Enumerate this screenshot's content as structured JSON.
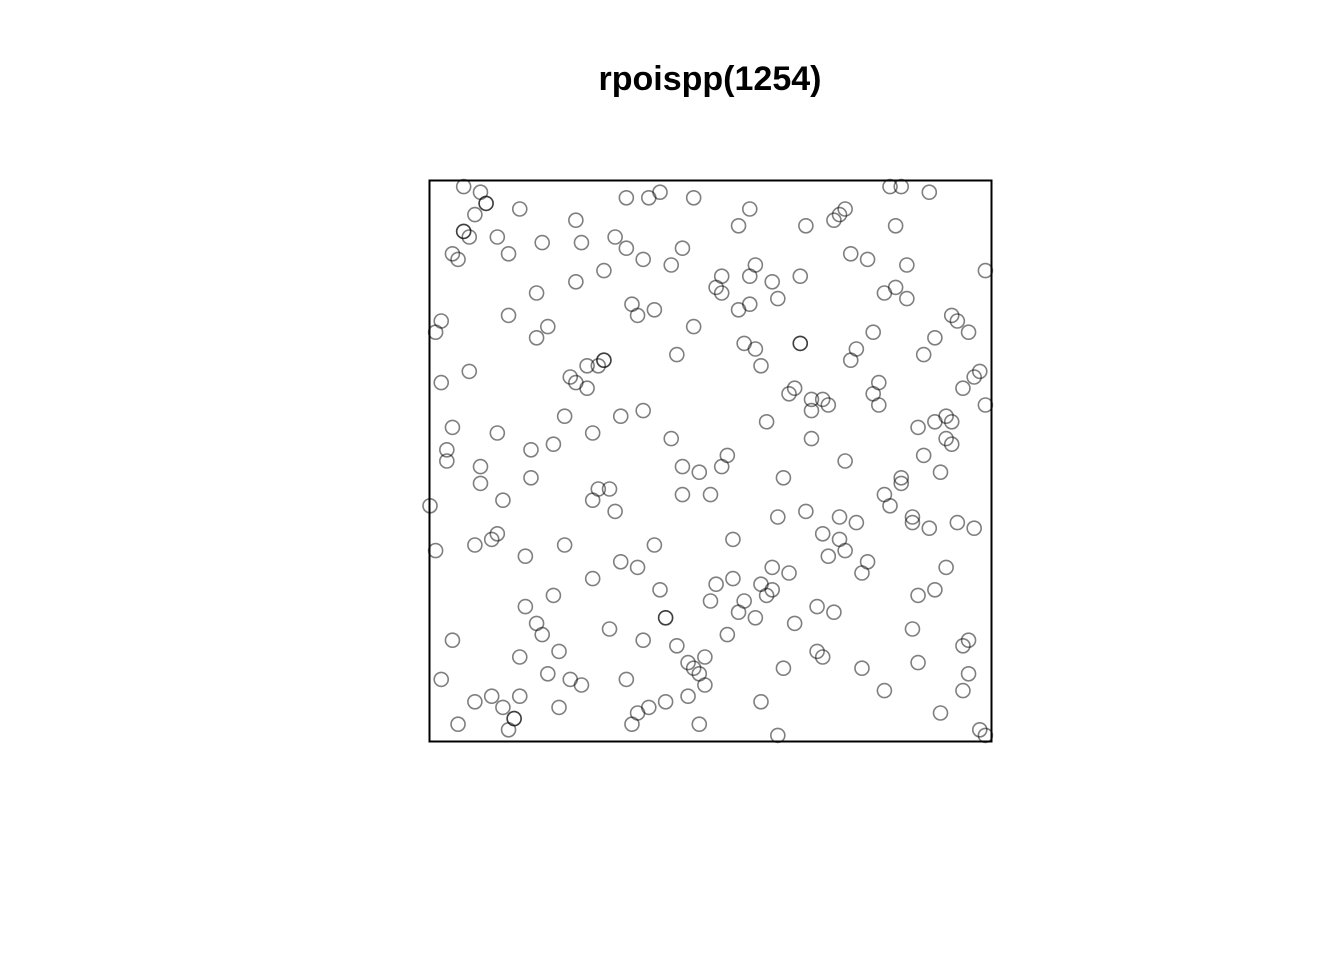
{
  "chart_data": {
    "type": "scatter",
    "title": "rpoispp(1254)",
    "color": "rgba(0,0,0,0.5)",
    "xlim": [
      0,
      1
    ],
    "ylim": [
      0,
      1
    ],
    "x": [
      0.03,
      0.87,
      0.45,
      0.12,
      0.66,
      0.91,
      0.28,
      0.54,
      0.73,
      0.09,
      0.38,
      0.81,
      0.17,
      0.59,
      0.95,
      0.24,
      0.47,
      0.69,
      0.02,
      0.33,
      0.78,
      0.14,
      0.52,
      0.88,
      0.41,
      0.06,
      0.63,
      0.29,
      0.97,
      0.36,
      0.71,
      0.19,
      0.84,
      0.5,
      0.08,
      0.57,
      0.92,
      0.25,
      0.44,
      0.67,
      0.11,
      0.79,
      0.35,
      0.6,
      0.99,
      0.22,
      0.48,
      0.74,
      0.05,
      0.31,
      0.86,
      0.16,
      0.55,
      0.93,
      0.27,
      0.42,
      0.7,
      0.01,
      0.39,
      0.83,
      0.2,
      0.64,
      0.89,
      0.13,
      0.46,
      0.76,
      0.34,
      0.58,
      0.04,
      0.96,
      0.26,
      0.51,
      0.8,
      0.18,
      0.62,
      0.37,
      0.94,
      0.07,
      0.72,
      0.43,
      0.85,
      0.3,
      0.56,
      0.1,
      0.68,
      0.23,
      0.9,
      0.4,
      0.75,
      0.15,
      0.53,
      0.98,
      0.32,
      0.61,
      0.0,
      0.82,
      0.49,
      0.21,
      0.77,
      0.65,
      0.37,
      0.06,
      0.92,
      0.58,
      0.14,
      0.73,
      0.47,
      0.28,
      0.85,
      0.61,
      0.03,
      0.39,
      0.96,
      0.19,
      0.54,
      0.8,
      0.11,
      0.66,
      0.32,
      0.9,
      0.44,
      0.71,
      0.08,
      0.25,
      0.87,
      0.52,
      0.17,
      0.63,
      0.98,
      0.35,
      0.76,
      0.02,
      0.49,
      0.83,
      0.22,
      0.59,
      0.94,
      0.13,
      0.68,
      0.41,
      0.29,
      0.95,
      0.56,
      0.05,
      0.74,
      0.38,
      0.81,
      0.16,
      0.6,
      0.91,
      0.26,
      0.48,
      0.07,
      0.7,
      0.33,
      0.86,
      0.12,
      0.57,
      0.99,
      0.45,
      0.64,
      0.2,
      0.79,
      0.42,
      0.01,
      0.53,
      0.88,
      0.31,
      0.67,
      0.1,
      0.46,
      0.93,
      0.24,
      0.75,
      0.55,
      0.04,
      0.84,
      0.36,
      0.62,
      0.18,
      0.97,
      0.5,
      0.27,
      0.72,
      0.09,
      0.4,
      0.89,
      0.15,
      0.58,
      0.34,
      0.78,
      0.06,
      0.65,
      0.43,
      0.92,
      0.21,
      0.51,
      0.82,
      0.3,
      0.69,
      0.12,
      0.86,
      0.47,
      0.61,
      0.23,
      0.95,
      0.38,
      0.74,
      0.04,
      0.57,
      0.81,
      0.16,
      0.66,
      0.29,
      0.9,
      0.52,
      0.08,
      0.77,
      0.35,
      0.99,
      0.42,
      0.68,
      0.19,
      0.84,
      0.55,
      0.02,
      0.73,
      0.31,
      0.93,
      0.48,
      0.14,
      0.62,
      0.87,
      0.26,
      0.7,
      0.09,
      0.45,
      0.96,
      0.37,
      0.59
    ],
    "values": [
      0.52,
      0.14,
      0.88,
      0.37,
      0.71,
      0.05,
      0.63,
      0.29,
      0.94,
      0.46,
      0.18,
      0.8,
      0.33,
      0.67,
      0.09,
      0.58,
      0.97,
      0.24,
      0.75,
      0.41,
      0.86,
      0.02,
      0.49,
      0.69,
      0.27,
      0.91,
      0.13,
      0.55,
      0.38,
      0.78,
      0.6,
      0.21,
      0.99,
      0.44,
      0.07,
      0.83,
      0.31,
      0.65,
      0.17,
      0.92,
      0.36,
      0.73,
      0.11,
      0.57,
      0.84,
      0.26,
      0.48,
      0.95,
      0.03,
      0.68,
      0.4,
      0.15,
      0.77,
      0.53,
      0.89,
      0.22,
      0.61,
      0.34,
      0.06,
      0.81,
      0.19,
      0.62,
      0.98,
      0.43,
      0.08,
      0.7,
      0.32,
      0.85,
      0.56,
      0.12,
      0.93,
      0.28,
      0.64,
      0.47,
      0.01,
      0.76,
      0.39,
      0.9,
      0.23,
      0.54,
      0.79,
      0.45,
      0.25,
      0.96,
      0.59,
      0.16,
      0.72,
      0.35,
      0.87,
      0.04,
      0.51,
      0.66,
      0.2,
      0.82,
      0.42,
      0.99,
      0.1,
      0.74,
      0.3,
      0.63,
      0.05,
      0.91,
      0.58,
      0.22,
      0.76,
      0.4,
      0.13,
      0.67,
      0.85,
      0.31,
      0.5,
      0.97,
      0.18,
      0.72,
      0.36,
      0.6,
      0.08,
      0.83,
      0.45,
      0.27,
      0.69,
      0.33,
      0.94,
      0.11,
      0.56,
      0.8,
      0.24,
      0.47,
      0.02,
      0.88,
      0.39,
      0.64,
      0.15,
      0.92,
      0.53,
      0.28,
      0.75,
      0.06,
      0.61,
      0.98,
      0.43,
      0.17,
      0.71,
      0.86,
      0.34,
      0.59,
      0.09,
      0.95,
      0.26,
      0.48,
      0.82,
      0.12,
      0.66,
      0.37,
      0.9,
      0.2,
      0.55,
      0.78,
      0.01,
      0.44,
      0.3,
      0.89,
      0.62,
      0.07,
      0.73,
      0.19,
      0.51,
      0.84,
      0.41,
      0.96,
      0.14,
      0.57,
      0.35,
      0.68,
      0.23,
      0.87,
      0.46,
      0.03,
      0.79,
      0.52,
      0.65,
      0.25,
      0.1,
      0.93,
      0.49,
      0.77,
      0.38,
      0.04,
      0.7,
      0.58,
      0.32,
      0.99,
      0.21,
      0.85,
      0.54,
      0.12,
      0.81,
      0.42,
      0.67,
      0.16,
      0.9,
      0.39,
      0.74,
      0.27,
      0.06,
      0.63,
      0.86,
      0.5,
      0.18,
      0.95,
      0.44,
      0.08,
      0.71,
      0.29,
      0.57,
      0.83,
      0.35,
      0.13,
      0.97,
      0.6,
      0.22,
      0.54,
      0.8,
      0.47,
      0.92,
      0.11,
      0.36,
      0.68,
      0.76,
      0.03,
      0.87,
      0.4,
      0.26,
      0.64,
      0.15,
      0.98,
      0.49,
      0.73,
      0.31,
      0.07
    ]
  }
}
